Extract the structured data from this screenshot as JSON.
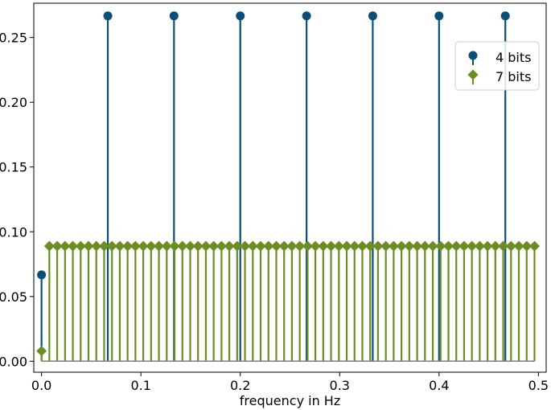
{
  "chart_data": {
    "type": "stem",
    "xlabel": "frequency in Hz",
    "ylabel": "",
    "xlim": [
      -0.0078,
      0.5078
    ],
    "ylim": [
      -0.0085,
      0.2765
    ],
    "xticks": [
      0.0,
      0.1,
      0.2,
      0.3,
      0.4,
      0.5
    ],
    "xtick_labels": [
      "0.0",
      "0.1",
      "0.2",
      "0.3",
      "0.4",
      "0.5"
    ],
    "yticks": [
      0.0,
      0.05,
      0.1,
      0.15,
      0.2,
      0.25
    ],
    "ytick_labels": [
      "0.00",
      "0.05",
      "0.10",
      "0.15",
      "0.20",
      "0.25"
    ],
    "grid": false,
    "legend": {
      "placement": "upper-right",
      "entries": [
        "4 bits",
        "7 bits"
      ]
    },
    "baseline": 0,
    "series": [
      {
        "name": "4 bits",
        "marker": "circle",
        "color": "#0b4f79",
        "x": [
          0.0,
          0.0667,
          0.1333,
          0.2,
          0.2667,
          0.3333,
          0.4,
          0.4667
        ],
        "values": [
          0.0667,
          0.2667,
          0.2667,
          0.2667,
          0.2667,
          0.2667,
          0.2667,
          0.2667
        ]
      },
      {
        "name": "7 bits",
        "marker": "diamond",
        "color": "#6b8e23",
        "x_start": 0.0,
        "x_step": 0.007874,
        "count": 64,
        "first_value": 0.0079,
        "rest_value": 0.0889
      }
    ]
  }
}
